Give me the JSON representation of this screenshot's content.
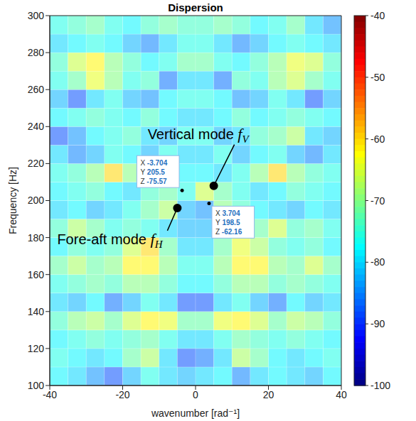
{
  "chart_data": {
    "type": "heatmap",
    "title": "Dispersion",
    "x_label": "wavenumber [rad⁻¹]",
    "y_label": "Frequency [Hz]",
    "xlim": [
      -40,
      40
    ],
    "xticks": [
      -40,
      -20,
      0,
      20,
      40
    ],
    "ylim": [
      100,
      300
    ],
    "yticks": [
      100,
      120,
      140,
      160,
      180,
      200,
      220,
      240,
      260,
      280,
      300
    ],
    "x_bins": [
      -40,
      -35,
      -30,
      -25,
      -20,
      -15,
      -10,
      -5,
      0,
      5,
      10,
      15,
      20,
      25,
      30,
      35,
      40
    ],
    "y_bins": [
      100,
      110,
      120,
      130,
      140,
      150,
      160,
      170,
      180,
      190,
      200,
      210,
      220,
      230,
      240,
      250,
      260,
      270,
      280,
      290,
      300
    ],
    "cells": [
      [
        -78,
        -80,
        -84,
        -88,
        -82,
        -76,
        -80,
        -82,
        -80,
        -78,
        -85,
        -80,
        -78,
        -80,
        -82,
        -78
      ],
      [
        -76,
        -78,
        -80,
        -78,
        -72,
        -68,
        -80,
        -88,
        -86,
        -80,
        -68,
        -72,
        -78,
        -80,
        -78,
        -76
      ],
      [
        -78,
        -76,
        -74,
        -76,
        -74,
        -72,
        -76,
        -80,
        -80,
        -76,
        -72,
        -74,
        -76,
        -74,
        -76,
        -78
      ],
      [
        -74,
        -70,
        -68,
        -72,
        -66,
        -62,
        -64,
        -72,
        -72,
        -64,
        -62,
        -66,
        -72,
        -68,
        -70,
        -74
      ],
      [
        -80,
        -82,
        -78,
        -86,
        -82,
        -76,
        -80,
        -88,
        -88,
        -80,
        -76,
        -82,
        -86,
        -78,
        -82,
        -80
      ],
      [
        -76,
        -74,
        -72,
        -74,
        -70,
        -70,
        -74,
        -78,
        -78,
        -74,
        -70,
        -70,
        -74,
        -72,
        -74,
        -76
      ],
      [
        -72,
        -68,
        -72,
        -70,
        -62,
        -62,
        -70,
        -76,
        -76,
        -70,
        -62,
        -62,
        -70,
        -72,
        -66,
        -72
      ],
      [
        -78,
        -74,
        -76,
        -74,
        -66,
        -60,
        -72,
        -80,
        -80,
        -72,
        -64,
        -68,
        -74,
        -76,
        -74,
        -78
      ],
      [
        -74,
        -68,
        -72,
        -76,
        -74,
        -76,
        -80,
        -82,
        -82,
        -80,
        -76,
        -72,
        -66,
        -74,
        -72,
        -76
      ],
      [
        -80,
        -78,
        -82,
        -80,
        -76,
        -72,
        -68,
        -82,
        -84,
        -70,
        -74,
        -78,
        -80,
        -82,
        -78,
        -80
      ],
      [
        -78,
        -76,
        -74,
        -78,
        -80,
        -74,
        -72,
        -76,
        -66,
        -72,
        -76,
        -80,
        -78,
        -74,
        -76,
        -78
      ],
      [
        -76,
        -74,
        -70,
        -60,
        -70,
        -76,
        -80,
        -78,
        -78,
        -80,
        -76,
        -70,
        -60,
        -70,
        -74,
        -76
      ],
      [
        -80,
        -85,
        -82,
        -76,
        -78,
        -82,
        -76,
        -80,
        -80,
        -76,
        -82,
        -78,
        -76,
        -82,
        -85,
        -80
      ],
      [
        -88,
        -84,
        -78,
        -76,
        -74,
        -80,
        -82,
        -76,
        -76,
        -82,
        -80,
        -74,
        -72,
        -68,
        -80,
        -82
      ],
      [
        -78,
        -76,
        -74,
        -76,
        -78,
        -74,
        -78,
        -80,
        -80,
        -78,
        -74,
        -78,
        -76,
        -74,
        -76,
        -78
      ],
      [
        -82,
        -88,
        -80,
        -76,
        -82,
        -84,
        -78,
        -76,
        -76,
        -78,
        -84,
        -82,
        -76,
        -80,
        -88,
        -82
      ],
      [
        -76,
        -72,
        -64,
        -70,
        -76,
        -74,
        -86,
        -80,
        -80,
        -86,
        -74,
        -76,
        -70,
        -66,
        -72,
        -76
      ],
      [
        -74,
        -66,
        -62,
        -70,
        -74,
        -78,
        -76,
        -72,
        -72,
        -76,
        -78,
        -74,
        -70,
        -64,
        -66,
        -74
      ],
      [
        -80,
        -78,
        -76,
        -78,
        -82,
        -85,
        -80,
        -76,
        -76,
        -80,
        -85,
        -82,
        -78,
        -76,
        -78,
        -80
      ],
      [
        -76,
        -74,
        -72,
        -76,
        -78,
        -74,
        -72,
        -74,
        -74,
        -72,
        -74,
        -78,
        -76,
        -72,
        -80,
        -84
      ]
    ],
    "colorbar": {
      "range": [
        -100,
        -40
      ],
      "ticks": [
        -100,
        -90,
        -80,
        -70,
        -60,
        -50,
        -40
      ]
    },
    "datatips": {
      "labels": [
        "X",
        "Y",
        "Z"
      ],
      "points": [
        {
          "x": -3.704,
          "y": 205.5,
          "z": -75.57
        },
        {
          "x": 3.704,
          "y": 198.5,
          "z": -62.16
        }
      ]
    },
    "annotations": [
      {
        "text": "Vertical mode",
        "symbol": "f",
        "subscript": "V",
        "x": 5,
        "y": 208
      },
      {
        "text": "Fore-aft mode",
        "symbol": "f",
        "subscript": "H",
        "x": -5,
        "y": 196
      }
    ]
  }
}
